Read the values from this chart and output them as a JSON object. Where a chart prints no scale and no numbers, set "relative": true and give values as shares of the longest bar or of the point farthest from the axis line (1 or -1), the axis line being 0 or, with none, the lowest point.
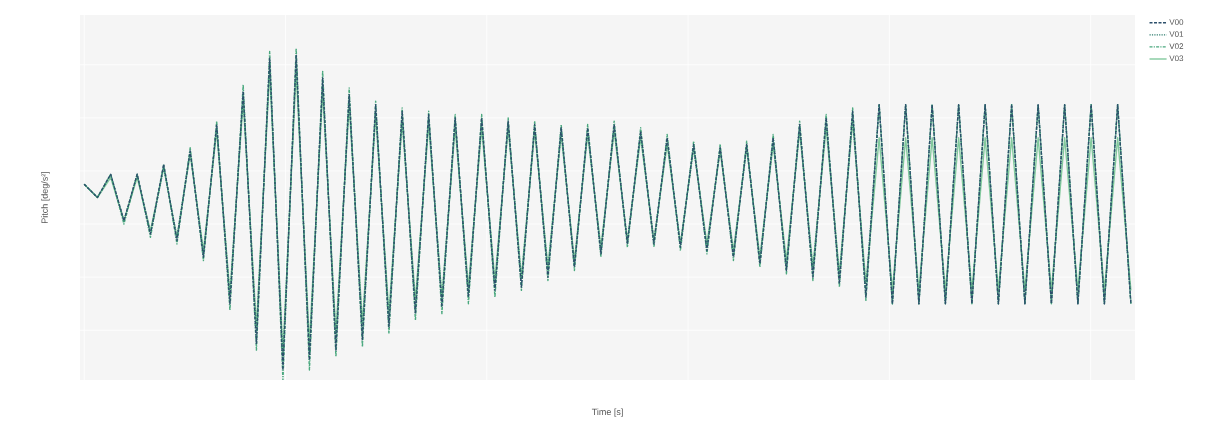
{
  "chart_data": {
    "type": "line",
    "xlabel": "Time [s]",
    "ylabel": "Pitch [deg/s²]",
    "relative": true,
    "grid": true,
    "legend": "top right",
    "tick_labels": false,
    "categories": [
      null,
      null,
      null,
      null,
      null,
      null,
      null,
      null,
      null,
      null,
      null,
      null,
      null,
      null,
      null,
      null,
      null,
      null,
      null,
      null,
      null,
      null,
      null,
      null,
      null,
      null,
      null,
      null,
      null,
      null,
      null,
      null,
      null,
      null,
      null,
      null,
      null,
      null,
      null,
      null,
      null,
      null,
      null,
      null,
      null,
      null,
      null,
      null,
      null,
      null,
      null,
      null,
      null,
      null,
      null,
      null,
      null,
      null,
      null,
      null,
      null,
      null,
      null,
      null,
      null,
      null,
      null,
      null,
      null,
      null,
      null,
      null,
      null,
      null,
      null,
      null,
      null,
      null,
      null,
      null
    ],
    "series": [
      {
        "name": "V00",
        "color": "#2c4f6b",
        "line_style": "dashed",
        "values": [
          0.59,
          0.55,
          0.62,
          0.48,
          0.62,
          0.44,
          0.65,
          0.42,
          0.69,
          0.37,
          0.77,
          0.23,
          0.87,
          0.11,
          0.97,
          0.03,
          0.98,
          0.06,
          0.91,
          0.09,
          0.86,
          0.12,
          0.83,
          0.16,
          0.81,
          0.2,
          0.8,
          0.22,
          0.79,
          0.25,
          0.79,
          0.27,
          0.78,
          0.28,
          0.77,
          0.31,
          0.76,
          0.34,
          0.76,
          0.38,
          0.77,
          0.41,
          0.75,
          0.41,
          0.73,
          0.4,
          0.71,
          0.39,
          0.7,
          0.37,
          0.71,
          0.35,
          0.73,
          0.33,
          0.77,
          0.31,
          0.79,
          0.29,
          0.81,
          0.25,
          0.83,
          0.23,
          0.83,
          0.23,
          0.83,
          0.23,
          0.83,
          0.23,
          0.83,
          0.23,
          0.83,
          0.23,
          0.83,
          0.23,
          0.83,
          0.23,
          0.83,
          0.23,
          0.83,
          0.23
        ]
      },
      {
        "name": "V01",
        "color": "#2e7d6e",
        "line_style": "dotted",
        "values": [
          0.59,
          0.55,
          0.62,
          0.48,
          0.62,
          0.44,
          0.64,
          0.43,
          0.69,
          0.38,
          0.76,
          0.25,
          0.86,
          0.14,
          0.95,
          0.06,
          0.96,
          0.08,
          0.89,
          0.12,
          0.85,
          0.15,
          0.81,
          0.18,
          0.79,
          0.22,
          0.79,
          0.24,
          0.78,
          0.26,
          0.78,
          0.28,
          0.77,
          0.3,
          0.76,
          0.33,
          0.75,
          0.35,
          0.75,
          0.39,
          0.76,
          0.42,
          0.74,
          0.42,
          0.72,
          0.41,
          0.7,
          0.4,
          0.7,
          0.38,
          0.7,
          0.36,
          0.72,
          0.34,
          0.76,
          0.33,
          0.78,
          0.31,
          0.79,
          0.27,
          0.83,
          0.23,
          0.83,
          0.23,
          0.83,
          0.23,
          0.83,
          0.23,
          0.83,
          0.23,
          0.83,
          0.23,
          0.83,
          0.23,
          0.83,
          0.23,
          0.83,
          0.23,
          0.83,
          0.23
        ]
      },
      {
        "name": "V02",
        "color": "#4aa87e",
        "line_style": "dashdot",
        "values": [
          0.59,
          0.55,
          0.62,
          0.47,
          0.62,
          0.43,
          0.65,
          0.41,
          0.7,
          0.36,
          0.78,
          0.21,
          0.89,
          0.09,
          0.99,
          0.0,
          1.0,
          0.03,
          0.93,
          0.07,
          0.88,
          0.1,
          0.84,
          0.14,
          0.82,
          0.18,
          0.81,
          0.2,
          0.8,
          0.23,
          0.8,
          0.25,
          0.79,
          0.27,
          0.78,
          0.3,
          0.77,
          0.33,
          0.77,
          0.37,
          0.78,
          0.4,
          0.76,
          0.4,
          0.74,
          0.39,
          0.72,
          0.38,
          0.71,
          0.36,
          0.72,
          0.34,
          0.74,
          0.32,
          0.78,
          0.3,
          0.8,
          0.28,
          0.82,
          0.24,
          0.83,
          0.23,
          0.83,
          0.23,
          0.83,
          0.23,
          0.83,
          0.23,
          0.83,
          0.23,
          0.83,
          0.23,
          0.83,
          0.23,
          0.83,
          0.23,
          0.83,
          0.23,
          0.83,
          0.23
        ]
      },
      {
        "name": "V03",
        "color": "#82c99d",
        "line_style": "solid",
        "values": [
          0.59,
          0.55,
          0.61,
          0.48,
          0.61,
          0.45,
          0.64,
          0.43,
          0.68,
          0.39,
          0.75,
          0.26,
          0.84,
          0.16,
          0.93,
          0.08,
          0.93,
          0.11,
          0.87,
          0.14,
          0.83,
          0.17,
          0.8,
          0.2,
          0.78,
          0.24,
          0.77,
          0.25,
          0.76,
          0.28,
          0.76,
          0.3,
          0.76,
          0.31,
          0.75,
          0.34,
          0.74,
          0.36,
          0.74,
          0.4,
          0.75,
          0.42,
          0.73,
          0.42,
          0.71,
          0.41,
          0.7,
          0.41,
          0.69,
          0.39,
          0.7,
          0.37,
          0.71,
          0.36,
          0.75,
          0.34,
          0.76,
          0.32,
          0.78,
          0.29,
          0.73,
          0.27,
          0.73,
          0.27,
          0.73,
          0.27,
          0.73,
          0.27,
          0.73,
          0.27,
          0.73,
          0.27,
          0.73,
          0.27,
          0.73,
          0.27,
          0.73,
          0.27,
          0.73,
          0.27
        ]
      }
    ]
  }
}
